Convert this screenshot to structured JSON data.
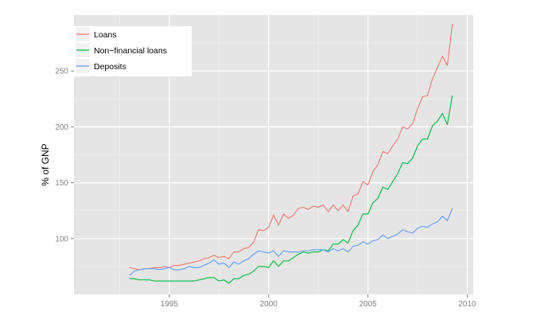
{
  "chart_data": {
    "type": "line",
    "title": "",
    "xlabel": "",
    "ylabel": "% of GNP",
    "xlim": [
      1990.2,
      2010.3
    ],
    "ylim": [
      50,
      300
    ],
    "x_ticks": [
      1995,
      2000,
      2005,
      2010
    ],
    "x_tick_labels": [
      "1995",
      "2000",
      "2005",
      "2010"
    ],
    "y_ticks": [
      100,
      150,
      200,
      250
    ],
    "y_tick_labels": [
      "100",
      "150",
      "200",
      "250"
    ],
    "grid": true,
    "legend_position": "top-left",
    "series": [
      {
        "name": "Loans",
        "color": "#F8766D",
        "x": [
          1993.0,
          1993.25,
          1993.5,
          1993.75,
          1994.0,
          1994.25,
          1994.5,
          1994.75,
          1995.0,
          1995.25,
          1995.5,
          1995.75,
          1996.0,
          1996.25,
          1996.5,
          1996.75,
          1997.0,
          1997.25,
          1997.5,
          1997.75,
          1998.0,
          1998.25,
          1998.5,
          1998.75,
          1999.0,
          1999.25,
          1999.5,
          1999.75,
          2000.0,
          2000.25,
          2000.5,
          2000.75,
          2001.0,
          2001.25,
          2001.5,
          2001.75,
          2002.0,
          2002.25,
          2002.5,
          2002.75,
          2003.0,
          2003.25,
          2003.5,
          2003.75,
          2004.0,
          2004.25,
          2004.5,
          2004.75,
          2005.0,
          2005.25,
          2005.5,
          2005.75,
          2006.0,
          2006.25,
          2006.5,
          2006.75,
          2007.0,
          2007.25,
          2007.5,
          2007.75,
          2008.0,
          2008.25,
          2008.5,
          2008.75,
          2009.0,
          2009.25
        ],
        "values": [
          74,
          73,
          72,
          73,
          73,
          74,
          74,
          75,
          74,
          76,
          76,
          77,
          78,
          79,
          80,
          82,
          83,
          85,
          83,
          84,
          82,
          88,
          88,
          91,
          92,
          97,
          108,
          107,
          110,
          121,
          112,
          122,
          118,
          121,
          127,
          128,
          126,
          129,
          128,
          130,
          124,
          130,
          125,
          130,
          124,
          138,
          140,
          151,
          148,
          160,
          166,
          178,
          176,
          183,
          189,
          200,
          198,
          203,
          216,
          227,
          228,
          243,
          253,
          263,
          255,
          292
        ]
      },
      {
        "name": "Non−financial loans",
        "color": "#00BA38",
        "x": [
          1993.0,
          1993.25,
          1993.5,
          1993.75,
          1994.0,
          1994.25,
          1994.5,
          1994.75,
          1995.0,
          1995.25,
          1995.5,
          1995.75,
          1996.0,
          1996.25,
          1996.5,
          1996.75,
          1997.0,
          1997.25,
          1997.5,
          1997.75,
          1998.0,
          1998.25,
          1998.5,
          1998.75,
          1999.0,
          1999.25,
          1999.5,
          1999.75,
          2000.0,
          2000.25,
          2000.5,
          2000.75,
          2001.0,
          2001.25,
          2001.5,
          2001.75,
          2002.0,
          2002.25,
          2002.5,
          2002.75,
          2003.0,
          2003.25,
          2003.5,
          2003.75,
          2004.0,
          2004.25,
          2004.5,
          2004.75,
          2005.0,
          2005.25,
          2005.5,
          2005.75,
          2006.0,
          2006.25,
          2006.5,
          2006.75,
          2007.0,
          2007.25,
          2007.5,
          2007.75,
          2008.0,
          2008.25,
          2008.5,
          2008.75,
          2009.0,
          2009.25
        ],
        "values": [
          64,
          64,
          63,
          63,
          63,
          62,
          62,
          62,
          62,
          62,
          62,
          62,
          62,
          62,
          63,
          64,
          65,
          65,
          62,
          63,
          60,
          64,
          64,
          67,
          68,
          71,
          75,
          75,
          74,
          80,
          75,
          80,
          80,
          83,
          86,
          88,
          87,
          88,
          88,
          90,
          89,
          95,
          95,
          99,
          96,
          107,
          112,
          122,
          122,
          132,
          136,
          146,
          144,
          151,
          158,
          168,
          167,
          172,
          183,
          189,
          189,
          201,
          205,
          212,
          202,
          228
        ]
      },
      {
        "name": "Deposits",
        "color": "#619CFF",
        "x": [
          1993.0,
          1993.25,
          1993.5,
          1993.75,
          1994.0,
          1994.25,
          1994.5,
          1994.75,
          1995.0,
          1995.25,
          1995.5,
          1995.75,
          1996.0,
          1996.25,
          1996.5,
          1996.75,
          1997.0,
          1997.25,
          1997.5,
          1997.75,
          1998.0,
          1998.25,
          1998.5,
          1998.75,
          1999.0,
          1999.25,
          1999.5,
          1999.75,
          2000.0,
          2000.25,
          2000.5,
          2000.75,
          2001.0,
          2001.25,
          2001.5,
          2001.75,
          2002.0,
          2002.25,
          2002.5,
          2002.75,
          2003.0,
          2003.25,
          2003.5,
          2003.75,
          2004.0,
          2004.25,
          2004.5,
          2004.75,
          2005.0,
          2005.25,
          2005.5,
          2005.75,
          2006.0,
          2006.25,
          2006.5,
          2006.75,
          2007.0,
          2007.25,
          2007.5,
          2007.75,
          2008.0,
          2008.25,
          2008.5,
          2008.75,
          2009.0,
          2009.25
        ],
        "values": [
          67,
          71,
          72,
          73,
          73,
          73,
          72,
          73,
          74,
          72,
          72,
          73,
          75,
          74,
          74,
          76,
          78,
          81,
          77,
          78,
          74,
          79,
          77,
          80,
          82,
          86,
          89,
          88,
          87,
          89,
          84,
          89,
          88,
          88,
          88,
          89,
          89,
          90,
          90,
          90,
          88,
          91,
          89,
          91,
          88,
          93,
          94,
          97,
          95,
          98,
          99,
          103,
          100,
          102,
          104,
          108,
          106,
          105,
          109,
          111,
          110,
          113,
          115,
          120,
          116,
          127
        ]
      }
    ]
  }
}
